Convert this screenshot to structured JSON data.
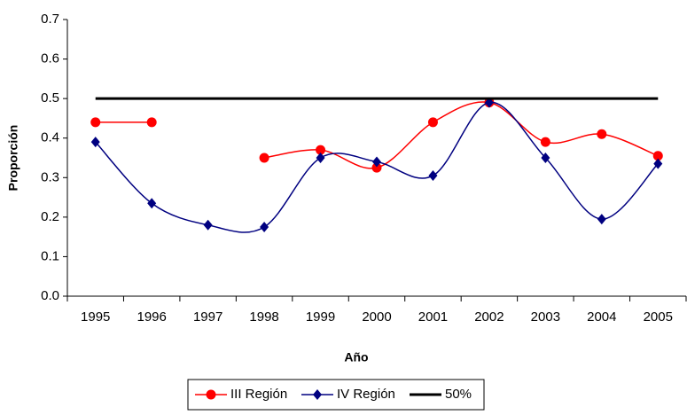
{
  "chart_data": {
    "type": "line",
    "x_label": "Año",
    "y_label": "Proporción",
    "categories": [
      "1995",
      "1996",
      "1997",
      "1998",
      "1999",
      "2000",
      "2001",
      "2002",
      "2003",
      "2004",
      "2005"
    ],
    "series": [
      {
        "name": "III Región",
        "color": "#ff0000",
        "marker": "circle",
        "smooth": true,
        "values": [
          0.44,
          0.44,
          null,
          0.35,
          0.37,
          0.325,
          0.44,
          0.49,
          0.39,
          0.41,
          0.355
        ]
      },
      {
        "name": "IV Región",
        "color": "#000080",
        "marker": "diamond",
        "smooth": true,
        "values": [
          0.39,
          0.235,
          0.18,
          0.175,
          0.35,
          0.34,
          0.305,
          0.49,
          0.35,
          0.195,
          0.335
        ]
      },
      {
        "name": "50%",
        "color": "#000000",
        "marker": "none",
        "smooth": false,
        "values": [
          0.5,
          0.5,
          0.5,
          0.5,
          0.5,
          0.5,
          0.5,
          0.5,
          0.5,
          0.5,
          0.5
        ]
      }
    ],
    "ylim": [
      0,
      0.7
    ],
    "yticks": [
      {
        "value": 0,
        "label": "0.0"
      },
      0.1,
      0.2,
      0.3,
      0.4,
      0.5,
      0.6,
      0.7
    ],
    "grid": false,
    "legend": "bottom"
  }
}
